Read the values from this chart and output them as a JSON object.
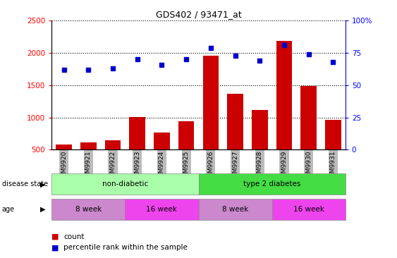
{
  "title": "GDS402 / 93471_at",
  "samples": [
    "GSM9920",
    "GSM9921",
    "GSM9922",
    "GSM9923",
    "GSM9924",
    "GSM9925",
    "GSM9926",
    "GSM9927",
    "GSM9928",
    "GSM9929",
    "GSM9930",
    "GSM9931"
  ],
  "bar_values": [
    575,
    610,
    645,
    1010,
    765,
    940,
    1960,
    1370,
    1115,
    2185,
    1490,
    960
  ],
  "percentile_values": [
    62,
    62,
    63,
    70,
    66,
    70,
    79,
    73,
    69,
    81,
    74,
    68
  ],
  "bar_color": "#cc0000",
  "dot_color": "#0000cc",
  "left_ylim": [
    500,
    2500
  ],
  "left_yticks": [
    500,
    1000,
    1500,
    2000,
    2500
  ],
  "right_ylim": [
    0,
    100
  ],
  "right_yticks": [
    0,
    25,
    50,
    75,
    100
  ],
  "right_yticklabels": [
    "0",
    "25",
    "50",
    "75",
    "100%"
  ],
  "disease_groups": [
    {
      "label": "non-diabetic",
      "start": 0,
      "end": 6,
      "color": "#aaffaa"
    },
    {
      "label": "type 2 diabetes",
      "start": 6,
      "end": 12,
      "color": "#44dd44"
    }
  ],
  "age_groups": [
    {
      "label": "8 week",
      "start": 0,
      "end": 3,
      "color": "#cc88cc"
    },
    {
      "label": "16 week",
      "start": 3,
      "end": 6,
      "color": "#ee44ee"
    },
    {
      "label": "8 week",
      "start": 6,
      "end": 9,
      "color": "#cc88cc"
    },
    {
      "label": "16 week",
      "start": 9,
      "end": 12,
      "color": "#ee44ee"
    }
  ],
  "legend_count_label": "count",
  "legend_percentile_label": "percentile rank within the sample",
  "disease_label": "disease state",
  "age_label": "age",
  "background_color": "#ffffff",
  "plot_bg_color": "#ffffff",
  "grid_color": "#000000",
  "tick_bg_color": "#bbbbbb"
}
